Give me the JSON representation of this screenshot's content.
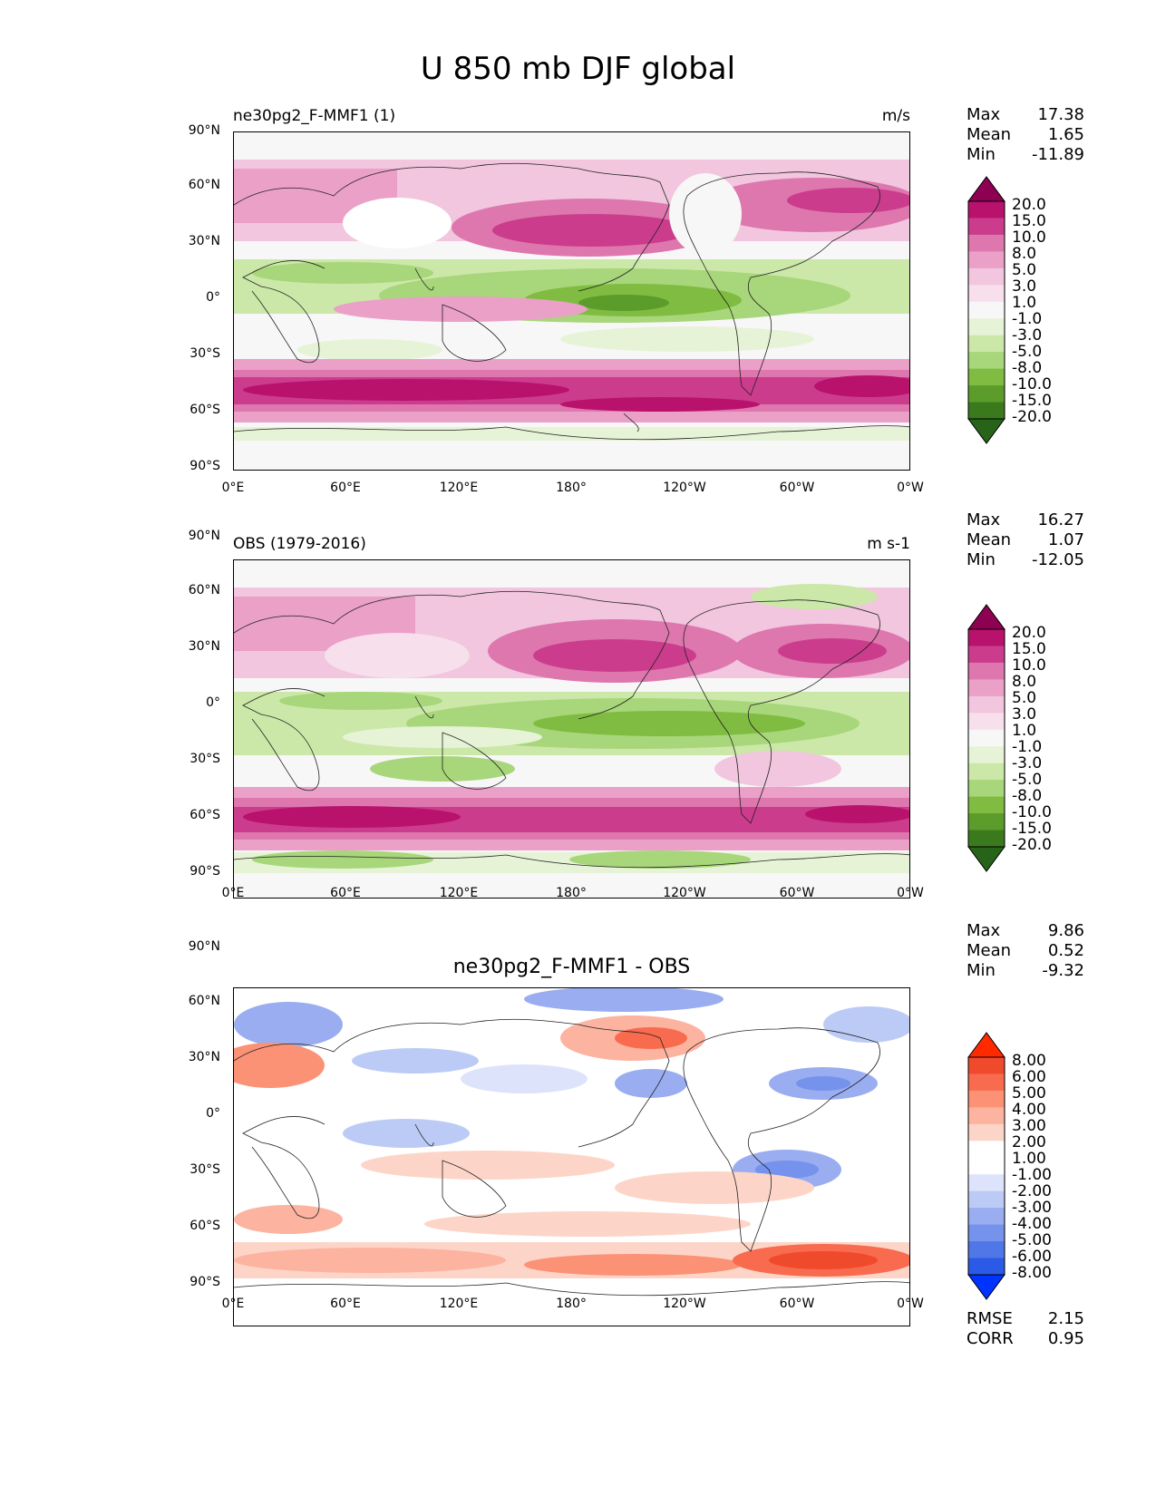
{
  "figure_title": "U 850 mb DJF global",
  "lat_labels": [
    "90°N",
    "60°N",
    "30°N",
    "0°",
    "30°S",
    "60°S",
    "90°S"
  ],
  "lon_labels": [
    "0°E",
    "60°E",
    "120°E",
    "180°",
    "120°W",
    "60°W",
    "0°W"
  ],
  "panels": [
    {
      "title": "ne30pg2_F-MMF1 (1)",
      "units": "m/s",
      "stats": {
        "max_label": "Max",
        "max": "17.38",
        "mean_label": "Mean",
        "mean": "1.65",
        "min_label": "Min",
        "min": "-11.89"
      },
      "colorbar_labels": [
        "20.0",
        "15.0",
        "10.0",
        "8.0",
        "5.0",
        "3.0",
        "1.0",
        "-1.0",
        "-3.0",
        "-5.0",
        "-8.0",
        "-10.0",
        "-15.0",
        "-20.0"
      ]
    },
    {
      "title": "OBS (1979-2016)",
      "units": "m s-1",
      "stats": {
        "max_label": "Max",
        "max": "16.27",
        "mean_label": "Mean",
        "mean": "1.07",
        "min_label": "Min",
        "min": "-12.05"
      },
      "colorbar_labels": [
        "20.0",
        "15.0",
        "10.0",
        "8.0",
        "5.0",
        "3.0",
        "1.0",
        "-1.0",
        "-3.0",
        "-5.0",
        "-8.0",
        "-10.0",
        "-15.0",
        "-20.0"
      ]
    },
    {
      "title": "ne30pg2_F-MMF1 - OBS",
      "stats": {
        "max_label": "Max",
        "max": "9.86",
        "mean_label": "Mean",
        "mean": "0.52",
        "min_label": "Min",
        "min": "-9.32"
      },
      "colorbar_labels": [
        "8.00",
        "6.00",
        "5.00",
        "4.00",
        "3.00",
        "2.00",
        "1.00",
        "-1.00",
        "-2.00",
        "-3.00",
        "-4.00",
        "-5.00",
        "-6.00",
        "-8.00"
      ],
      "rmse_label": "RMSE",
      "rmse": "2.15",
      "corr_label": "CORR",
      "corr": "0.95"
    }
  ],
  "colormaps": {
    "piyg": [
      "#8e0152",
      "#b8126d",
      "#cc3c8d",
      "#de77ae",
      "#eba0c8",
      "#f1c6de",
      "#f7dfec",
      "#f7f7f7",
      "#e6f3d6",
      "#cbe8a8",
      "#a8d67a",
      "#7fbc41",
      "#5b9c2b",
      "#3a7a1d",
      "#276419"
    ],
    "diff": [
      "#ff2a00",
      "#f04a2d",
      "#f86b4e",
      "#fb9275",
      "#fcb3a0",
      "#fdd5c8",
      "#ffffff",
      "#ffffff",
      "#dde3fb",
      "#bccbf6",
      "#99adf0",
      "#7592ec",
      "#5077e8",
      "#2b5ae6",
      "#0033ff"
    ]
  }
}
